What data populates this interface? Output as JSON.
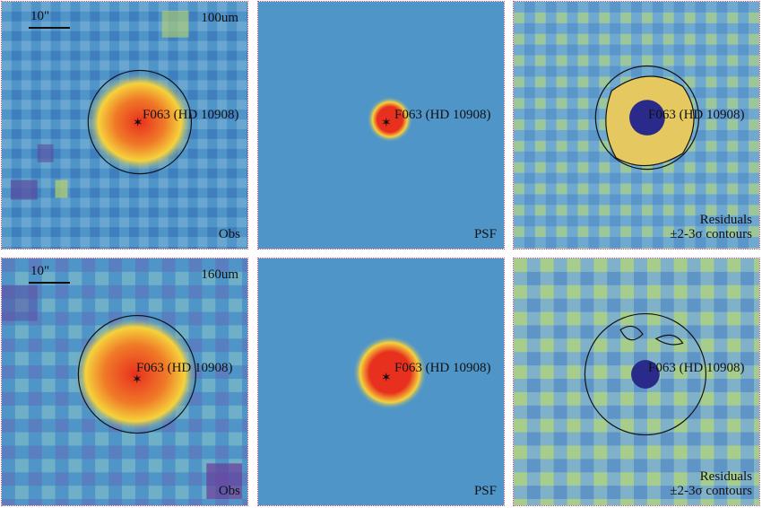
{
  "scale_bar": "10\"",
  "target_label": "F063 (HD 10908)",
  "rows": [
    {
      "wavelength": "100um",
      "panels": [
        {
          "label": "Obs"
        },
        {
          "label": "PSF"
        },
        {
          "label_line1": "Residuals",
          "label_line2": "±2-3σ contours"
        }
      ]
    },
    {
      "wavelength": "160um",
      "panels": [
        {
          "label": "Obs"
        },
        {
          "label": "PSF"
        },
        {
          "label_line1": "Residuals",
          "label_line2": "±2-3σ contours"
        }
      ]
    }
  ],
  "colors": {
    "background": "#4f95c8",
    "core": "#e8301e",
    "halo": "#f5d23c",
    "noise_low": "#5a4a9e",
    "noise_high": "#b8d26a",
    "negative": "#2a2a8a"
  }
}
